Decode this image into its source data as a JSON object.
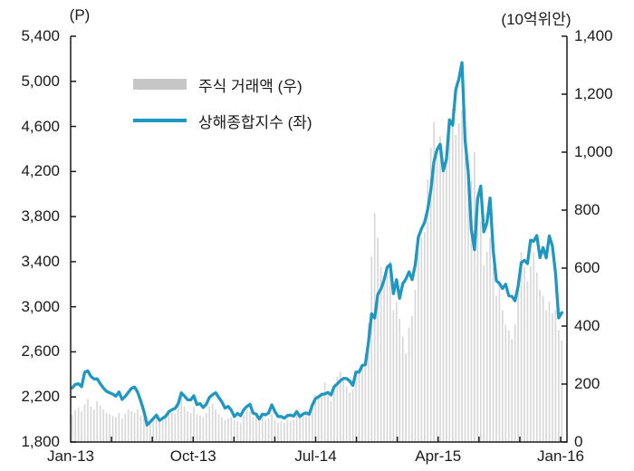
{
  "units": {
    "left": "(P)",
    "right": "(10억위안)"
  },
  "legend": {
    "items": [
      {
        "label": "주식 거래액 (우)",
        "swatch": "bar",
        "color": "#c6c6c6"
      },
      {
        "label": "상해종합지수 (좌)",
        "swatch": "line",
        "color": "#1e97c2"
      }
    ]
  },
  "colors": {
    "background": "#ffffff",
    "axis": "#1a1a1a",
    "text": "#1a1a1a",
    "bar": "#d8d8d8",
    "line": "#1e97c2"
  },
  "chart_data": {
    "type": "combo",
    "title": "",
    "x_range": [
      "Jan-13",
      "Jan-16"
    ],
    "x_tick_labels": [
      "Jan-13",
      "Oct-13",
      "Jul-14",
      "Apr-15",
      "Jan-16"
    ],
    "x_minor_ticks_months": 3,
    "left_axis": {
      "label": "(P)",
      "min": 1800,
      "max": 5400,
      "tick_step": 400,
      "tick_labels": [
        "5,400",
        "5,000",
        "4,600",
        "4,200",
        "3,800",
        "3,400",
        "3,000",
        "2,600",
        "2,200",
        "1,800"
      ]
    },
    "right_axis": {
      "label": "(10억위안)",
      "min": 0,
      "max": 1400,
      "tick_step": 200,
      "tick_labels": [
        "1,400",
        "1,200",
        "1,000",
        "800",
        "600",
        "400",
        "200",
        "0"
      ]
    },
    "series": [
      {
        "name": "주식 거래액 (우)",
        "type": "bar",
        "axis": "right",
        "color": "#d8d8d8",
        "values": [
          95,
          110,
          120,
          105,
          130,
          148,
          122,
          112,
          140,
          126,
          112,
          100,
          96,
          90,
          86,
          100,
          82,
          96,
          112,
          106,
          100,
          112,
          92,
          82,
          86,
          72,
          76,
          86,
          70,
          74,
          90,
          112,
          100,
          96,
          130,
          152,
          122,
          106,
          100,
          122,
          96,
          92,
          86,
          100,
          122,
          132,
          112,
          96,
          86,
          76,
          82,
          86,
          76,
          72,
          66,
          92,
          112,
          106,
          86,
          96,
          82,
          86,
          76,
          82,
          96,
          76,
          66,
          72,
          66,
          76,
          72,
          76,
          92,
          86,
          96,
          102,
          96,
          132,
          162,
          156,
          172,
          205,
          162,
          142,
          182,
          225,
          242,
          212,
          192,
          172,
          182,
          242,
          242,
          262,
          305,
          410,
          640,
          790,
          705,
          605,
          565,
          585,
          625,
          455,
          485,
          425,
          365,
          305,
          395,
          435,
          525,
          655,
          705,
          725,
          905,
          1015,
          1105,
          985,
          1055,
          955,
          1005,
          1105,
          1150,
          1060,
          1100,
          1145,
          985,
          905,
          900,
          1000,
          820,
          760,
          610,
          655,
          705,
          605,
          505,
          555,
          455,
          405,
          385,
          355,
          405,
          525,
          655,
          605,
          555,
          605,
          655,
          585,
          525,
          505,
          455,
          485,
          445,
          455,
          385,
          350
        ]
      },
      {
        "name": "상해종합지수 (좌)",
        "type": "line",
        "axis": "left",
        "color": "#1e97c2",
        "values": [
          2280,
          2311,
          2317,
          2291,
          2419,
          2432,
          2382,
          2359,
          2360,
          2318,
          2278,
          2250,
          2237,
          2225,
          2207,
          2244,
          2178,
          2205,
          2241,
          2276,
          2288,
          2242,
          2162,
          2073,
          1950,
          1979,
          2007,
          2039,
          1992,
          2010,
          2029,
          2069,
          2086,
          2098,
          2140,
          2236,
          2207,
          2175,
          2174,
          2211,
          2132,
          2141,
          2106,
          2135,
          2196,
          2220,
          2237,
          2196,
          2155,
          2101,
          2116,
          2083,
          2026,
          2054,
          2033,
          2086,
          2115,
          2135,
          2056,
          2047,
          2004,
          2047,
          2041,
          2058,
          2130,
          2072,
          2026,
          2027,
          2011,
          2034,
          2039,
          2030,
          2070,
          2026,
          2048,
          2059,
          2047,
          2126,
          2185,
          2201,
          2223,
          2226,
          2240,
          2217,
          2290,
          2316,
          2345,
          2364,
          2363,
          2341,
          2302,
          2420,
          2420,
          2479,
          2487,
          2683,
          2938,
          2900,
          3108,
          3157,
          3235,
          3350,
          3376,
          3116,
          3240,
          3075,
          3204,
          3246,
          3310,
          3241,
          3372,
          3617,
          3691,
          3748,
          3863,
          4034,
          4288,
          4394,
          4442,
          4206,
          4308,
          4658,
          4612,
          4926,
          5023,
          5166,
          4478,
          4193,
          3687,
          3507,
          3957,
          4071,
          3664,
          3744,
          3965,
          3508,
          3232,
          3206,
          3161,
          3200,
          3098,
          3092,
          3053,
          3183,
          3391,
          3412,
          3383,
          3590,
          3581,
          3631,
          3436,
          3525,
          3434,
          3628,
          3539,
          3296,
          2901,
          2948
        ]
      }
    ]
  }
}
